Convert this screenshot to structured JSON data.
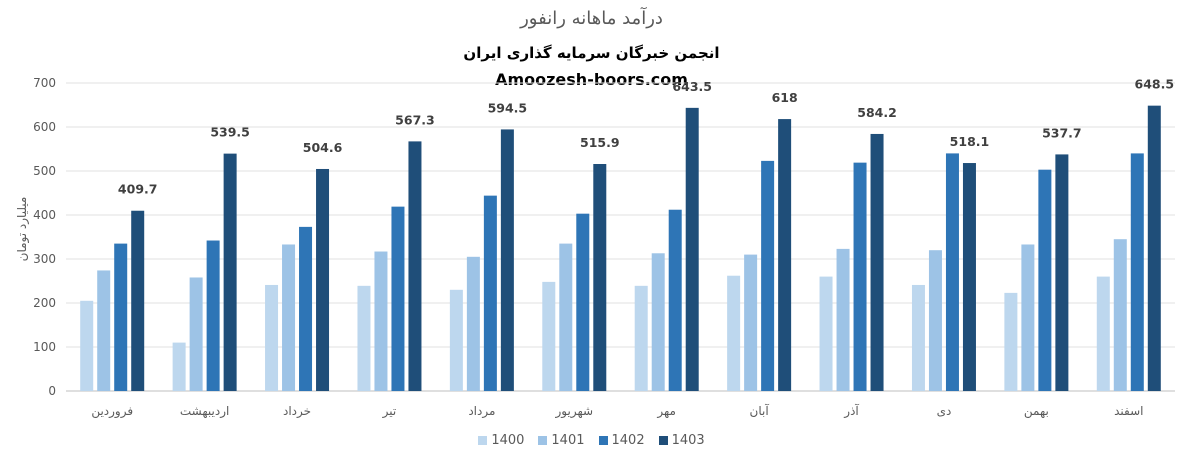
{
  "chart_data": {
    "type": "bar",
    "title": "درآمد ماهانه رانفور",
    "subtitle": "انجمن خبرگان سرمایه گذاری ایران",
    "watermark": "Amoozesh-boors.com",
    "ylabel": "میلیارد تومان",
    "xlabel": "",
    "ylim": [
      0,
      700
    ],
    "yticks": [
      0,
      100,
      200,
      300,
      400,
      500,
      600,
      700
    ],
    "grid": true,
    "legend_position": "bottom",
    "categories": [
      "فروردین",
      "اردیبهشت",
      "خرداد",
      "تیر",
      "مرداد",
      "شهریور",
      "مهر",
      "آبان",
      "آذر",
      "دی",
      "بهمن",
      "اسفند"
    ],
    "series": [
      {
        "name": "1400",
        "color": "#BDD7EE",
        "values": [
          205,
          110,
          241,
          239,
          230,
          248,
          239,
          262,
          260,
          241,
          223,
          260
        ]
      },
      {
        "name": "1401",
        "color": "#9DC3E6",
        "values": [
          274,
          258,
          333,
          317,
          305,
          335,
          313,
          310,
          323,
          320,
          333,
          345
        ]
      },
      {
        "name": "1402",
        "color": "#2E75B6",
        "values": [
          335,
          342,
          373,
          419,
          444,
          403,
          412,
          523,
          519,
          540,
          503,
          540
        ]
      },
      {
        "name": "1403",
        "color": "#1F4E79",
        "values": [
          409.7,
          539.5,
          504.6,
          567.3,
          594.5,
          515.9,
          643.5,
          618,
          584.2,
          518.1,
          537.7,
          648.5
        ]
      }
    ],
    "data_labels": {
      "series": "1403",
      "values": [
        "409.7",
        "539.5",
        "504.6",
        "567.3",
        "594.5",
        "515.9",
        "643.5",
        "618",
        "584.2",
        "518.1",
        "537.7",
        "648.5"
      ]
    }
  }
}
